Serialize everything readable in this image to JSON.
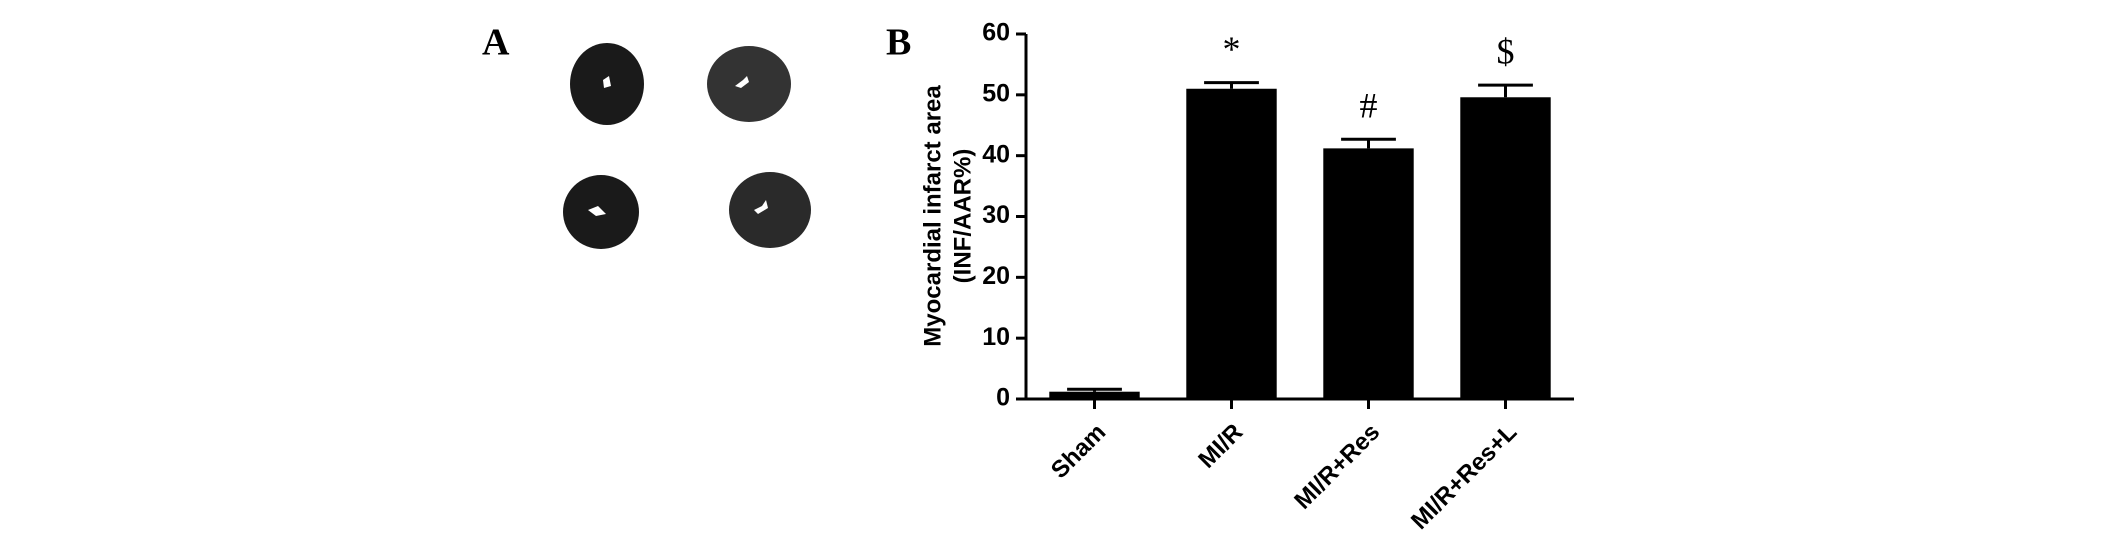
{
  "panel_labels": [
    "A",
    "B"
  ],
  "chart_data": {
    "type": "bar",
    "ylabel": [
      "Myocardial infarct area",
      "(INF/AAR%)"
    ],
    "categories": [
      "Sham",
      "MI/R",
      "MI/R+Res",
      "MI/R+Res+L"
    ],
    "values": [
      1.2,
      51,
      41.2,
      49.6
    ],
    "errors": [
      0.4,
      1.0,
      1.5,
      2.0
    ],
    "annotations": [
      null,
      "*",
      "#",
      "$"
    ],
    "color": "#000000",
    "ylim": [
      0,
      60
    ],
    "yticks": [
      0,
      10,
      20,
      30,
      40,
      50,
      60
    ],
    "grid": false
  }
}
